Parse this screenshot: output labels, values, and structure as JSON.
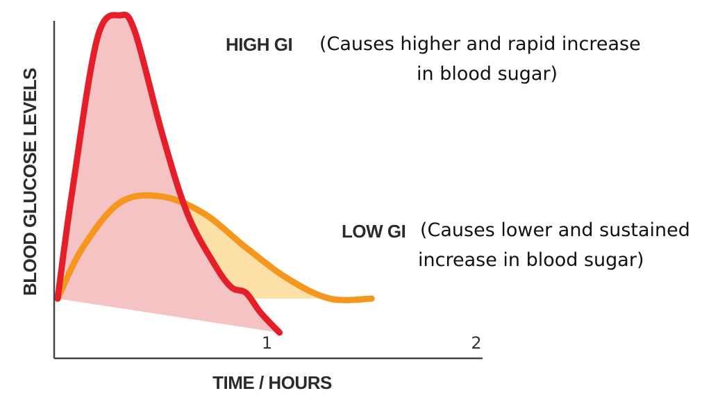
{
  "chart_data": {
    "type": "area",
    "xlabel": "TIME / HOURS",
    "ylabel": "BLOOD GLUCOSE LEVELS",
    "x_ticks": [
      "1",
      "2"
    ],
    "xlim": [
      0,
      2
    ],
    "ylim": [
      -0.2,
      1
    ],
    "series": [
      {
        "name": "HIGH GI",
        "description_lines": [
          "(Causes higher and rapid increase",
          "in blood sugar)"
        ],
        "color": "#e51f2a",
        "fill": "#f5c3c3",
        "points": [
          [
            0,
            0
          ],
          [
            0.07,
            0.38
          ],
          [
            0.19,
            0.92
          ],
          [
            0.3,
            1.0
          ],
          [
            0.37,
            0.94
          ],
          [
            0.5,
            0.58
          ],
          [
            0.62,
            0.3
          ],
          [
            0.75,
            0.12
          ],
          [
            0.83,
            0.04
          ],
          [
            0.9,
            0.02
          ],
          [
            0.97,
            -0.05
          ],
          [
            1.06,
            -0.12
          ]
        ]
      },
      {
        "name": "LOW GI",
        "description_lines": [
          "(Causes lower and sustained",
          "increase in blood sugar)"
        ],
        "color": "#f5961e",
        "fill": "#fde0a8",
        "points": [
          [
            0,
            0
          ],
          [
            0.12,
            0.18
          ],
          [
            0.3,
            0.34
          ],
          [
            0.5,
            0.36
          ],
          [
            0.7,
            0.3
          ],
          [
            0.9,
            0.18
          ],
          [
            1.1,
            0.07
          ],
          [
            1.3,
            0.0
          ],
          [
            1.5,
            0.0
          ]
        ]
      }
    ]
  }
}
